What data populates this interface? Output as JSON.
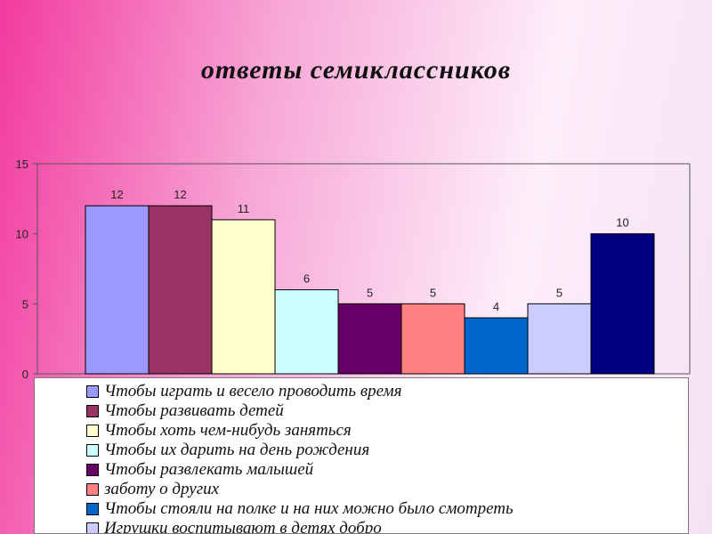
{
  "chart_data": {
    "type": "bar",
    "title": "ответы семиклассников",
    "ylim": [
      0,
      15
    ],
    "yticks": [
      0,
      5,
      10,
      15
    ],
    "grid": false,
    "legend_position": "bottom",
    "series": [
      {
        "name": "Чтобы играть и весело проводить время",
        "value": 12,
        "color": "#9999ff"
      },
      {
        "name": "Чтобы развивать детей",
        "value": 12,
        "color": "#993366"
      },
      {
        "name": "Чтобы хоть чем-нибудь заняться",
        "value": 11,
        "color": "#ffffcc"
      },
      {
        "name": "Чтобы их дарить на день рождения",
        "value": 6,
        "color": "#ccffff"
      },
      {
        "name": "Чтобы развлекать малышей",
        "value": 5,
        "color": "#660066"
      },
      {
        "name": "заботу о других",
        "value": 5,
        "color": "#ff8080"
      },
      {
        "name": "Чтобы стояли на полке и на них можно было смотреть",
        "value": 4,
        "color": "#0066cc"
      },
      {
        "name": "Игрушки воспитывают в детях добро",
        "value": 5,
        "color": "#ccccff"
      },
      {
        "name": "",
        "value": 10,
        "color": "#000080"
      }
    ]
  }
}
